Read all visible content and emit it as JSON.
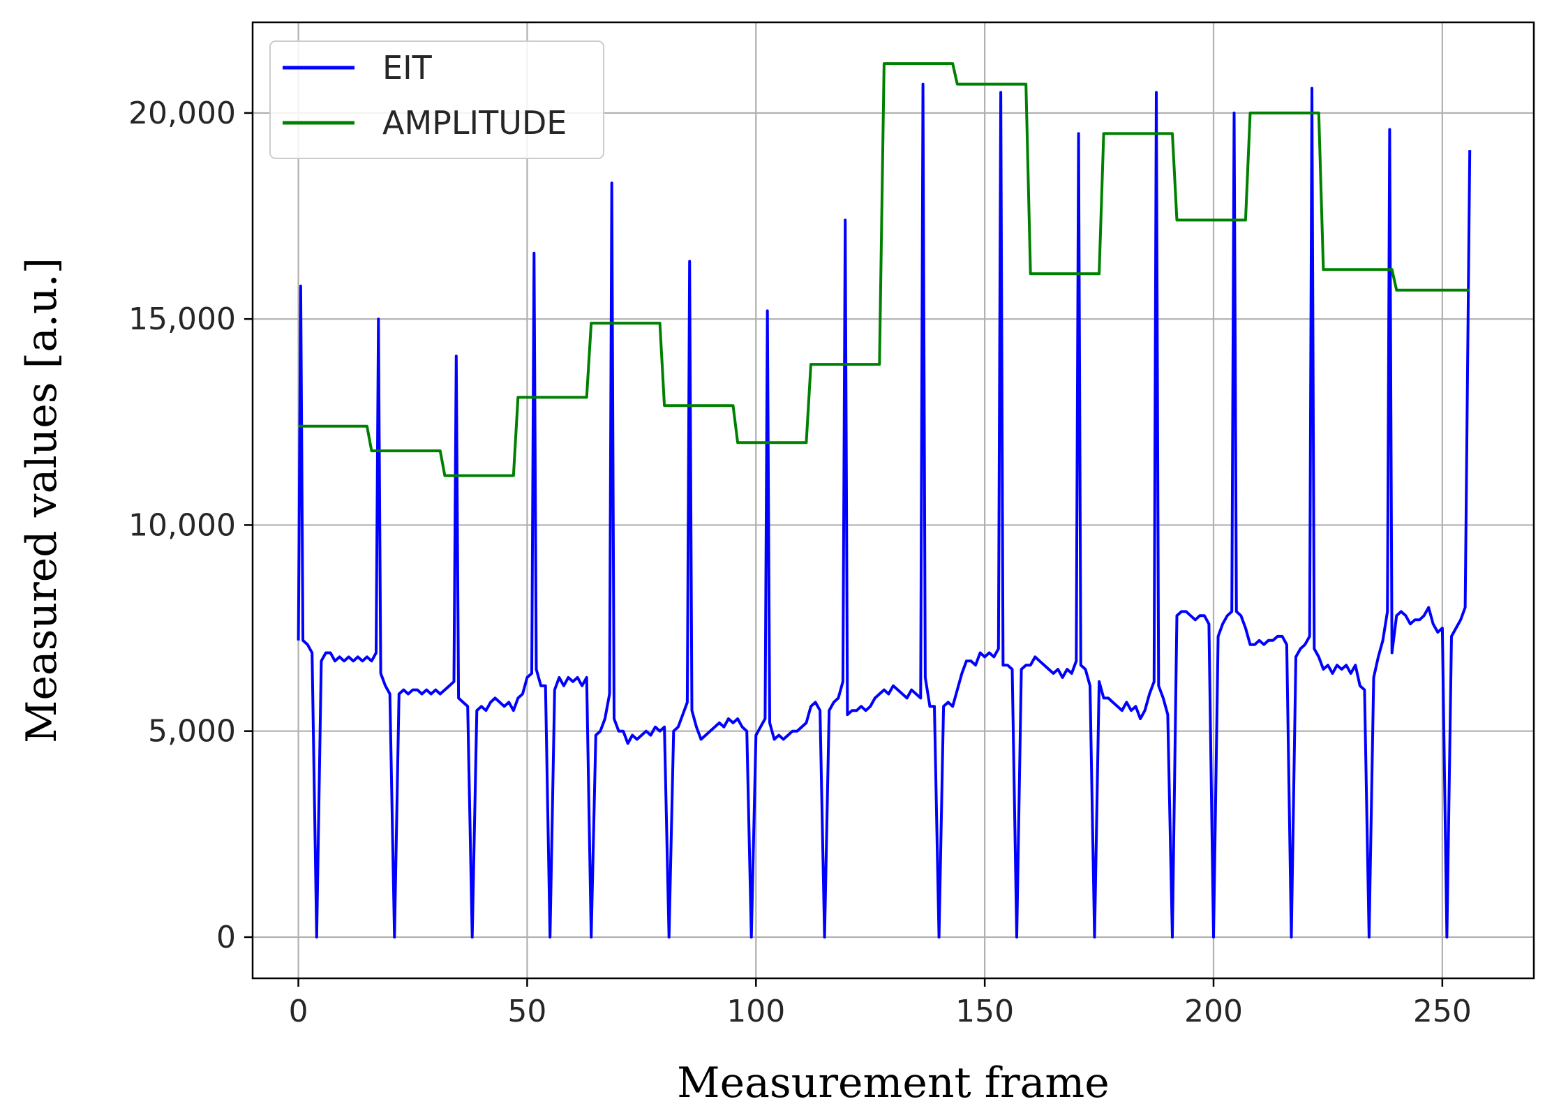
{
  "chart_data": {
    "type": "line",
    "xlabel": "Measurement frame",
    "ylabel": "Measured values [a.u.]",
    "xlim": [
      -10,
      270
    ],
    "ylim": [
      -1000,
      22200
    ],
    "x_ticks": [
      0,
      50,
      100,
      150,
      200,
      250
    ],
    "x_tick_labels": [
      "0",
      "50",
      "100",
      "150",
      "200",
      "250"
    ],
    "y_ticks": [
      0,
      5000,
      10000,
      15000,
      20000
    ],
    "y_tick_labels": [
      "0",
      "5,000",
      "10,000",
      "15,000",
      "20,000"
    ],
    "grid": true,
    "legend": "top-left",
    "colors": {
      "EIT": "#0000ff",
      "AMPLITUDE": "#008000",
      "grid": "#b0b0b0"
    },
    "series": [
      {
        "name": "EIT",
        "x": [
          0,
          0.5,
          1,
          2,
          3,
          4,
          5,
          6,
          7,
          8,
          9,
          10,
          11,
          12,
          13,
          14,
          15,
          16,
          17,
          17.5,
          18,
          19,
          20,
          21,
          22,
          23,
          24,
          25,
          26,
          27,
          28,
          29,
          30,
          31,
          32,
          33,
          34,
          34.5,
          35,
          36,
          37,
          38,
          39,
          40,
          41,
          42,
          43,
          44,
          45,
          46,
          47,
          48,
          49,
          50,
          51,
          51.5,
          52,
          53,
          54,
          55,
          56,
          57,
          58,
          59,
          60,
          61,
          62,
          63,
          64,
          65,
          66,
          67,
          68,
          68.5,
          69,
          70,
          71,
          72,
          73,
          74,
          75,
          76,
          77,
          78,
          79,
          80,
          81,
          82,
          83,
          84,
          85,
          85.5,
          86,
          87,
          88,
          89,
          90,
          91,
          92,
          93,
          94,
          95,
          96,
          97,
          98,
          99,
          100,
          101,
          102,
          102.5,
          103,
          104,
          105,
          106,
          107,
          108,
          109,
          110,
          111,
          112,
          113,
          114,
          115,
          116,
          117,
          118,
          119,
          119.5,
          120,
          121,
          122,
          123,
          124,
          125,
          126,
          127,
          128,
          129,
          130,
          131,
          132,
          133,
          134,
          135,
          136,
          136.5,
          137,
          138,
          139,
          140,
          141,
          142,
          143,
          144,
          145,
          146,
          147,
          148,
          149,
          150,
          151,
          152,
          153,
          153.5,
          154,
          155,
          156,
          157,
          158,
          159,
          160,
          161,
          162,
          163,
          164,
          165,
          166,
          167,
          168,
          169,
          170,
          170.5,
          171,
          172,
          173,
          174,
          175,
          176,
          177,
          178,
          179,
          180,
          181,
          182,
          183,
          184,
          185,
          186,
          187,
          187.5,
          188,
          189,
          190,
          191,
          192,
          193,
          194,
          195,
          196,
          197,
          198,
          199,
          200,
          201,
          202,
          203,
          204,
          204.5,
          205,
          206,
          207,
          208,
          209,
          210,
          211,
          212,
          213,
          214,
          215,
          216,
          217,
          218,
          219,
          220,
          221,
          221.5,
          222,
          223,
          224,
          225,
          226,
          227,
          228,
          229,
          230,
          231,
          232,
          233,
          234,
          235,
          236,
          237,
          238,
          238.5,
          239,
          240,
          241,
          242,
          243,
          244,
          245,
          246,
          247,
          248,
          249,
          250,
          251,
          252,
          253,
          254,
          255,
          256
        ],
        "y": [
          7200,
          15800,
          7200,
          7100,
          6900,
          0,
          6700,
          6900,
          6900,
          6700,
          6800,
          6700,
          6800,
          6700,
          6800,
          6700,
          6800,
          6700,
          6900,
          15000,
          6400,
          6100,
          5900,
          0,
          5900,
          6000,
          5900,
          6000,
          6000,
          5900,
          6000,
          5900,
          6000,
          5900,
          6000,
          6100,
          6200,
          14100,
          5800,
          5700,
          5600,
          0,
          5500,
          5600,
          5500,
          5700,
          5800,
          5700,
          5600,
          5700,
          5500,
          5800,
          5900,
          6300,
          6400,
          16600,
          6500,
          6100,
          6100,
          0,
          6000,
          6300,
          6100,
          6300,
          6200,
          6300,
          6100,
          6300,
          0,
          4900,
          5000,
          5300,
          5900,
          18300,
          5300,
          5000,
          5000,
          4700,
          4900,
          4800,
          4900,
          5000,
          4900,
          5100,
          5000,
          5100,
          0,
          5000,
          5100,
          5400,
          5700,
          16400,
          5500,
          5100,
          4800,
          4900,
          5000,
          5100,
          5200,
          5100,
          5300,
          5200,
          5300,
          5100,
          5000,
          0,
          4900,
          5100,
          5300,
          15200,
          5200,
          4800,
          4900,
          4800,
          4900,
          5000,
          5000,
          5100,
          5200,
          5600,
          5700,
          5500,
          0,
          5500,
          5700,
          5800,
          6200,
          17400,
          5400,
          5500,
          5500,
          5600,
          5500,
          5600,
          5800,
          5900,
          6000,
          5900,
          6100,
          6000,
          5900,
          5800,
          6000,
          5900,
          5800,
          20700,
          6300,
          5600,
          5600,
          0,
          5600,
          5700,
          5600,
          6000,
          6400,
          6700,
          6700,
          6600,
          6900,
          6800,
          6900,
          6800,
          7000,
          20500,
          6600,
          6600,
          6500,
          0,
          6500,
          6600,
          6600,
          6800,
          6700,
          6600,
          6500,
          6400,
          6500,
          6300,
          6500,
          6400,
          6700,
          19500,
          6600,
          6500,
          6100,
          0,
          6200,
          5800,
          5800,
          5700,
          5600,
          5500,
          5700,
          5500,
          5600,
          5300,
          5500,
          5900,
          6200,
          20500,
          6100,
          5800,
          5400,
          0,
          7800,
          7900,
          7900,
          7800,
          7700,
          7800,
          7800,
          7600,
          0,
          7300,
          7600,
          7800,
          7900,
          20000,
          7900,
          7800,
          7500,
          7100,
          7100,
          7200,
          7100,
          7200,
          7200,
          7300,
          7300,
          7100,
          0,
          6800,
          7000,
          7100,
          7300,
          20600,
          7000,
          6800,
          6500,
          6600,
          6400,
          6600,
          6500,
          6600,
          6400,
          6600,
          6100,
          6000,
          0,
          6300,
          6800,
          7200,
          7900,
          19600,
          6900,
          7800,
          7900,
          7800,
          7600,
          7700,
          7700,
          7800,
          8000,
          7600,
          7400,
          7500,
          0,
          7300,
          7500,
          7700,
          8000,
          19100
        ]
      },
      {
        "name": "AMPLITUDE",
        "x": [
          0,
          15,
          16,
          31,
          32,
          47,
          48,
          63,
          64,
          79,
          80,
          95,
          96,
          111,
          112,
          127,
          128,
          143,
          144,
          159,
          160,
          175,
          176,
          191,
          192,
          207,
          208,
          223,
          224,
          239,
          240,
          256
        ],
        "y": [
          12400,
          12400,
          11800,
          11800,
          11200,
          11200,
          13100,
          13100,
          14900,
          14900,
          12900,
          12900,
          12000,
          12000,
          13900,
          13900,
          21200,
          21200,
          20700,
          20700,
          16100,
          16100,
          19500,
          19500,
          17400,
          17400,
          20000,
          20000,
          16200,
          16200,
          15700,
          15700
        ]
      }
    ]
  }
}
